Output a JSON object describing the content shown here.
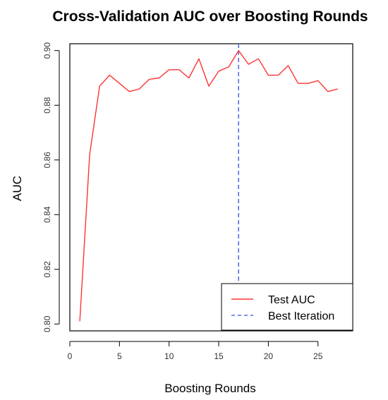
{
  "chart_data": {
    "type": "line",
    "title": "Cross-Validation AUC over Boosting Rounds",
    "xlabel": "Boosting Rounds",
    "ylabel": "AUC",
    "xlim": [
      0,
      28.5
    ],
    "ylim": [
      0.7975,
      0.9025
    ],
    "x_ticks": [
      0,
      5,
      10,
      15,
      20,
      25
    ],
    "y_ticks": [
      0.8,
      0.82,
      0.84,
      0.86,
      0.88,
      0.9
    ],
    "x_tick_labels": [
      "0",
      "5",
      "10",
      "15",
      "20",
      "25"
    ],
    "y_tick_labels": [
      "0.80",
      "0.82",
      "0.84",
      "0.86",
      "0.88",
      "0.90"
    ],
    "grid": false,
    "legend_position": "bottom-right",
    "series": [
      {
        "name": "Test AUC",
        "color": "#ff3333",
        "line_style": "solid",
        "x": [
          1,
          2,
          3,
          4,
          5,
          6,
          7,
          8,
          9,
          10,
          11,
          12,
          13,
          14,
          15,
          16,
          17,
          18,
          19,
          20,
          21,
          22,
          23,
          24,
          25,
          26,
          27
        ],
        "y": [
          0.801,
          0.862,
          0.887,
          0.891,
          0.888,
          0.885,
          0.886,
          0.8895,
          0.89,
          0.893,
          0.893,
          0.89,
          0.897,
          0.887,
          0.8925,
          0.894,
          0.9,
          0.895,
          0.897,
          0.891,
          0.891,
          0.8945,
          0.888,
          0.888,
          0.889,
          0.885,
          0.886
        ]
      }
    ],
    "reference_lines": [
      {
        "name": "Best Iteration",
        "orientation": "vertical",
        "x": 17,
        "color": "#5a6ee6",
        "line_style": "dashed"
      }
    ]
  }
}
